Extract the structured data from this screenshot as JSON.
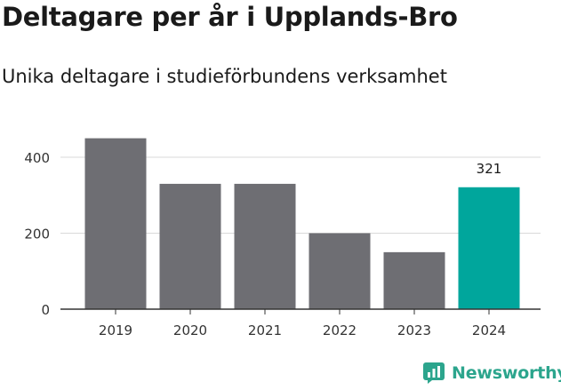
{
  "header": {
    "title": "Deltagare per år i Upplands-Bro",
    "subtitle": "Unika deltagare i studieförbundens verksamhet"
  },
  "brand": {
    "name": "Newsworthy",
    "color": "#2ca58d"
  },
  "chart_data": {
    "type": "bar",
    "title": "Deltagare per år i Upplands-Bro",
    "subtitle": "Unika deltagare i studieförbundens verksamhet",
    "xlabel": "",
    "ylabel": "",
    "categories": [
      "2019",
      "2020",
      "2021",
      "2022",
      "2023",
      "2024"
    ],
    "values": [
      450,
      330,
      330,
      200,
      150,
      321
    ],
    "data_labels": [
      null,
      null,
      null,
      null,
      null,
      "321"
    ],
    "highlight_index": 5,
    "bar_color": "#6e6e73",
    "highlight_color": "#00a69c",
    "yticks": [
      0,
      200,
      400
    ],
    "ylim": [
      0,
      450
    ],
    "grid": true,
    "legend": "none"
  }
}
